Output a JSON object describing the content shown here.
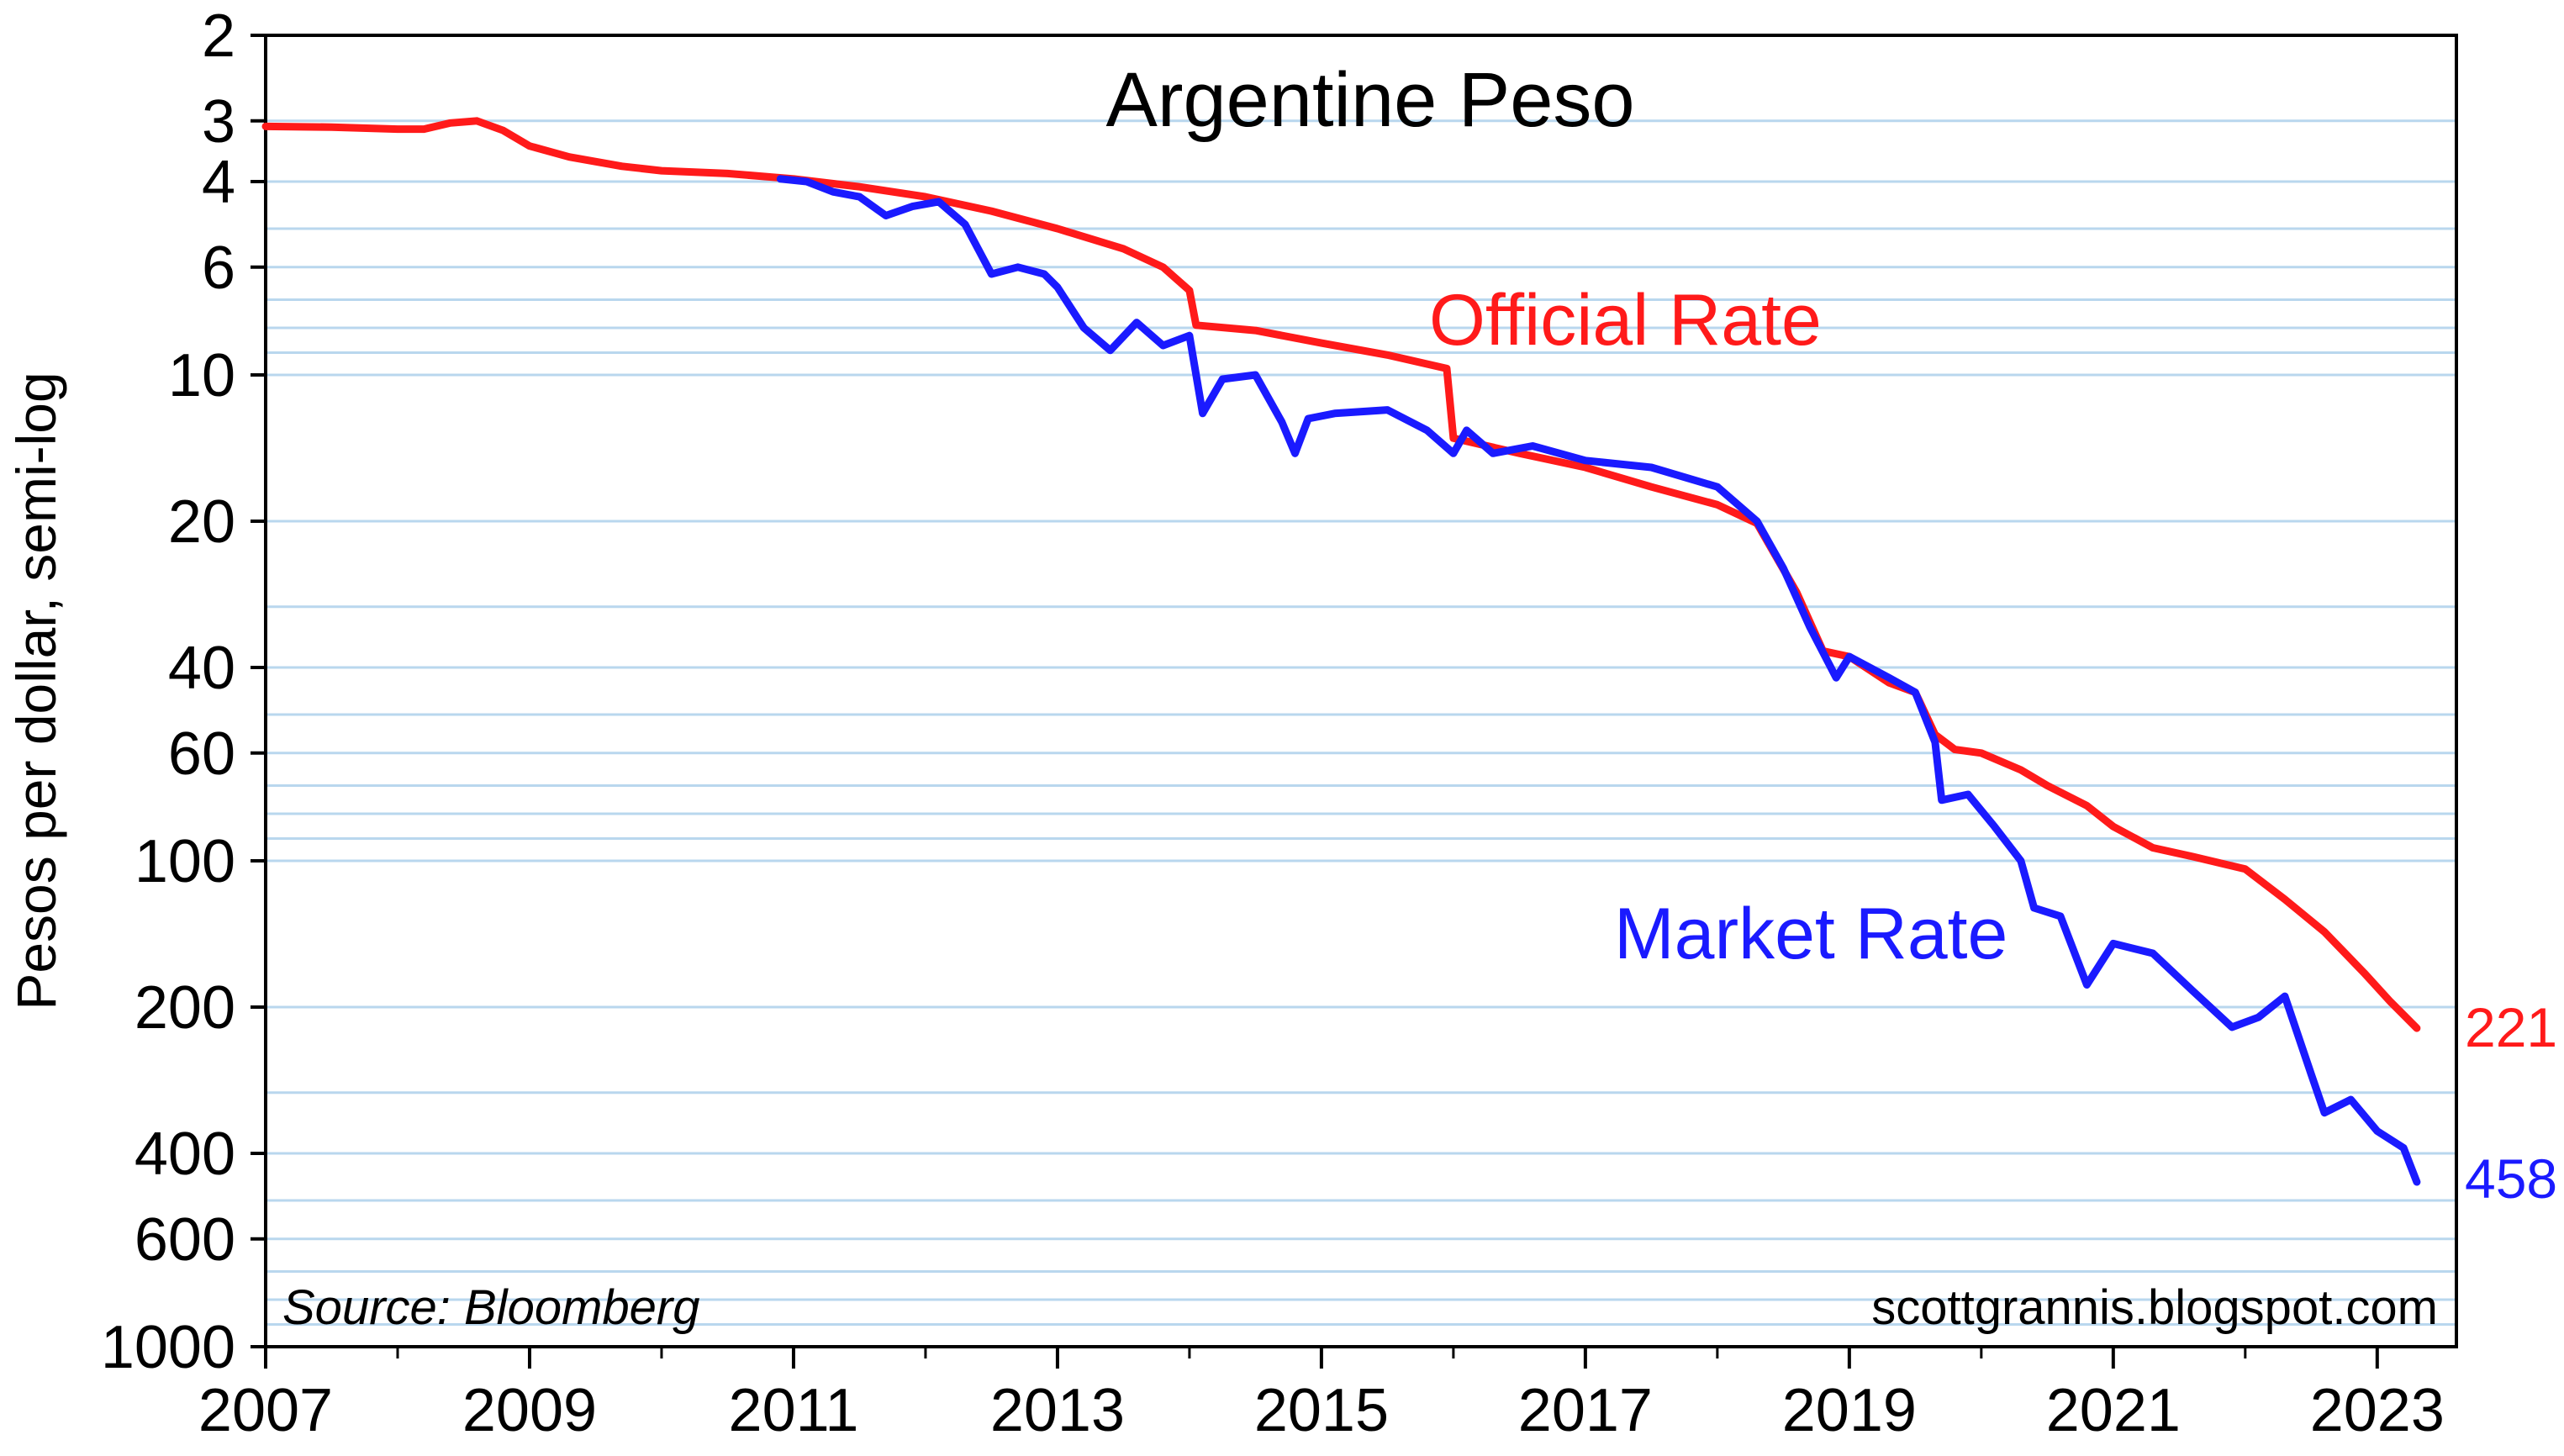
{
  "chart_data": {
    "type": "line",
    "title": "Argentine Peso",
    "ylabel": "Pesos per dollar, semi-log",
    "xlabel": "",
    "y_scale": "log",
    "y_inverted": true,
    "ylim": [
      2,
      1000
    ],
    "xlim": [
      2007,
      2023.6
    ],
    "x_ticks": [
      "2007",
      "2009",
      "2011",
      "2013",
      "2015",
      "2017",
      "2019",
      "2021",
      "2023"
    ],
    "y_ticks": [
      "2",
      "3",
      "4",
      "6",
      "10",
      "20",
      "40",
      "60",
      "100",
      "200",
      "400",
      "600",
      "1000"
    ],
    "grid": true,
    "source": "Source: Bloomberg",
    "watermark": "scottgrannis.blogspot.com",
    "series": [
      {
        "name": "Official Rate",
        "color": "#ff1a1a",
        "end_label": "221",
        "points": [
          [
            2007.0,
            3.08
          ],
          [
            2007.5,
            3.09
          ],
          [
            2008.0,
            3.12
          ],
          [
            2008.2,
            3.12
          ],
          [
            2008.4,
            3.03
          ],
          [
            2008.6,
            3.0
          ],
          [
            2008.8,
            3.14
          ],
          [
            2009.0,
            3.38
          ],
          [
            2009.3,
            3.56
          ],
          [
            2009.7,
            3.72
          ],
          [
            2010.0,
            3.8
          ],
          [
            2010.5,
            3.85
          ],
          [
            2011.0,
            3.95
          ],
          [
            2011.5,
            4.1
          ],
          [
            2012.0,
            4.3
          ],
          [
            2012.5,
            4.6
          ],
          [
            2013.0,
            5.0
          ],
          [
            2013.5,
            5.5
          ],
          [
            2013.8,
            6.0
          ],
          [
            2014.0,
            6.7
          ],
          [
            2014.05,
            7.9
          ],
          [
            2014.5,
            8.1
          ],
          [
            2015.0,
            8.6
          ],
          [
            2015.5,
            9.1
          ],
          [
            2015.95,
            9.7
          ],
          [
            2016.0,
            13.5
          ],
          [
            2016.5,
            14.5
          ],
          [
            2017.0,
            15.5
          ],
          [
            2017.5,
            17.0
          ],
          [
            2018.0,
            18.5
          ],
          [
            2018.3,
            20.2
          ],
          [
            2018.6,
            28.0
          ],
          [
            2018.8,
            37.0
          ],
          [
            2019.0,
            38.0
          ],
          [
            2019.3,
            43.0
          ],
          [
            2019.5,
            45.0
          ],
          [
            2019.65,
            55.0
          ],
          [
            2019.8,
            59.0
          ],
          [
            2020.0,
            60.0
          ],
          [
            2020.3,
            65.0
          ],
          [
            2020.5,
            70.0
          ],
          [
            2020.8,
            77.0
          ],
          [
            2021.0,
            85.0
          ],
          [
            2021.3,
            94.0
          ],
          [
            2021.6,
            98.0
          ],
          [
            2022.0,
            104.0
          ],
          [
            2022.3,
            120.0
          ],
          [
            2022.6,
            140.0
          ],
          [
            2022.9,
            170.0
          ],
          [
            2023.1,
            195.0
          ],
          [
            2023.3,
            221.0
          ]
        ]
      },
      {
        "name": "Market Rate",
        "color": "#1a1aff",
        "end_label": "458",
        "points": [
          [
            2010.9,
            3.95
          ],
          [
            2011.1,
            4.0
          ],
          [
            2011.3,
            4.2
          ],
          [
            2011.5,
            4.3
          ],
          [
            2011.7,
            4.7
          ],
          [
            2011.9,
            4.5
          ],
          [
            2012.1,
            4.4
          ],
          [
            2012.3,
            4.9
          ],
          [
            2012.5,
            6.2
          ],
          [
            2012.7,
            6.0
          ],
          [
            2012.9,
            6.2
          ],
          [
            2013.0,
            6.6
          ],
          [
            2013.2,
            8.0
          ],
          [
            2013.4,
            8.9
          ],
          [
            2013.6,
            7.8
          ],
          [
            2013.8,
            8.7
          ],
          [
            2014.0,
            8.3
          ],
          [
            2014.1,
            12.0
          ],
          [
            2014.25,
            10.2
          ],
          [
            2014.5,
            10.0
          ],
          [
            2014.7,
            12.5
          ],
          [
            2014.8,
            14.5
          ],
          [
            2014.9,
            12.3
          ],
          [
            2015.1,
            12.0
          ],
          [
            2015.5,
            11.8
          ],
          [
            2015.8,
            13.0
          ],
          [
            2016.0,
            14.5
          ],
          [
            2016.1,
            13.0
          ],
          [
            2016.3,
            14.5
          ],
          [
            2016.6,
            14.0
          ],
          [
            2017.0,
            15.0
          ],
          [
            2017.5,
            15.5
          ],
          [
            2018.0,
            17.0
          ],
          [
            2018.3,
            20.0
          ],
          [
            2018.5,
            25.0
          ],
          [
            2018.7,
            33.0
          ],
          [
            2018.9,
            42.0
          ],
          [
            2019.0,
            38.0
          ],
          [
            2019.3,
            42.0
          ],
          [
            2019.5,
            45.0
          ],
          [
            2019.65,
            57.0
          ],
          [
            2019.7,
            75.0
          ],
          [
            2019.9,
            73.0
          ],
          [
            2020.1,
            85.0
          ],
          [
            2020.3,
            100.0
          ],
          [
            2020.4,
            125.0
          ],
          [
            2020.6,
            130.0
          ],
          [
            2020.8,
            180.0
          ],
          [
            2021.0,
            148.0
          ],
          [
            2021.3,
            155.0
          ],
          [
            2021.6,
            185.0
          ],
          [
            2021.9,
            220.0
          ],
          [
            2022.1,
            210.0
          ],
          [
            2022.3,
            190.0
          ],
          [
            2022.5,
            275.0
          ],
          [
            2022.6,
            330.0
          ],
          [
            2022.8,
            310.0
          ],
          [
            2023.0,
            360.0
          ],
          [
            2023.2,
            390.0
          ],
          [
            2023.3,
            458.0
          ]
        ]
      }
    ]
  }
}
